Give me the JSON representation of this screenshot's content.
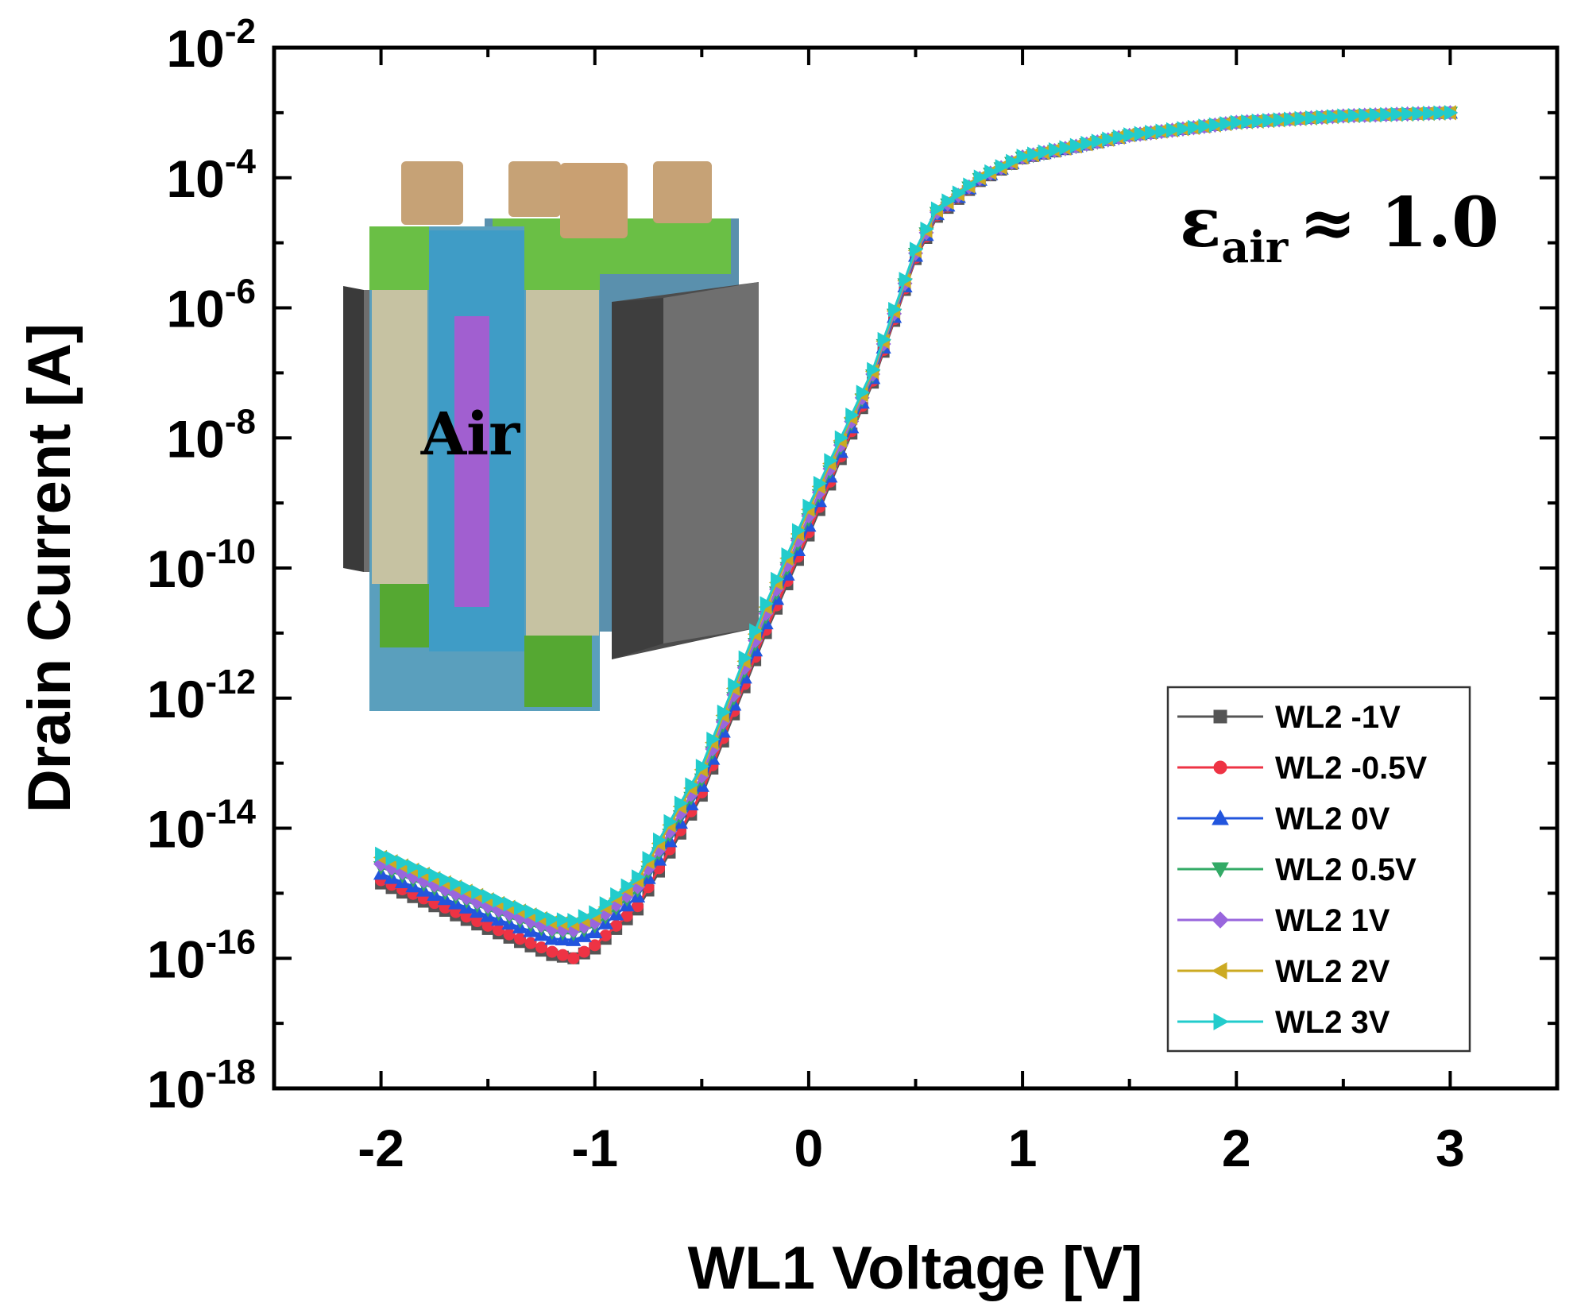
{
  "chart_data": {
    "type": "line",
    "xlabel": "WL1 Voltage [V]",
    "ylabel": "Drain Current [A]",
    "xlim": [
      -2.5,
      3.5
    ],
    "ylim": [
      1e-18,
      0.01
    ],
    "y_scale": "log",
    "x_ticks": [
      "-2",
      "-1",
      "0",
      "1",
      "2",
      "3"
    ],
    "y_ticks": [
      {
        "base": "10",
        "exp": "-2"
      },
      {
        "base": "10",
        "exp": "-4"
      },
      {
        "base": "10",
        "exp": "-6"
      },
      {
        "base": "10",
        "exp": "-8"
      },
      {
        "base": "10",
        "exp": "-10"
      },
      {
        "base": "10",
        "exp": "-12"
      },
      {
        "base": "10",
        "exp": "-14"
      },
      {
        "base": "10",
        "exp": "-16"
      },
      {
        "base": "10",
        "exp": "-18"
      }
    ],
    "grid": false,
    "legend_position": "bottom-right",
    "annotation": {
      "main": "ε",
      "sub": "air",
      "rest": "≈ 1.0"
    },
    "inset": {
      "label": "Air"
    },
    "series": [
      {
        "name": "WL2 -1V",
        "color": "#555555",
        "marker": "square",
        "x": [
          -2.0,
          -1.5,
          -1.2,
          -1.1,
          -1.0,
          -0.8,
          -0.5,
          -0.2,
          0.0,
          0.3,
          0.5,
          0.6,
          0.8,
          1.0,
          1.5,
          2.0,
          2.5,
          3.0
        ],
        "log_y": [
          -14.85,
          -15.55,
          -15.95,
          -16.0,
          -15.85,
          -15.25,
          -13.5,
          -11.0,
          -9.5,
          -7.15,
          -5.25,
          -4.6,
          -4.05,
          -3.7,
          -3.35,
          -3.15,
          -3.05,
          -3.0
        ]
      },
      {
        "name": "WL2 -0.5V",
        "color": "#ee3344",
        "marker": "circle",
        "x": [
          -2.0,
          -1.5,
          -1.2,
          -1.1,
          -1.0,
          -0.8,
          -0.5,
          -0.2,
          0.0,
          0.3,
          0.5,
          0.6,
          0.8,
          1.0,
          1.5,
          2.0,
          2.5,
          3.0
        ],
        "log_y": [
          -14.8,
          -15.5,
          -15.9,
          -16.0,
          -15.8,
          -15.2,
          -13.45,
          -10.95,
          -9.45,
          -7.12,
          -5.23,
          -4.58,
          -4.04,
          -3.7,
          -3.35,
          -3.15,
          -3.05,
          -3.0
        ]
      },
      {
        "name": "WL2 0V",
        "color": "#2255dd",
        "marker": "triangle-up",
        "x": [
          -2.0,
          -1.5,
          -1.2,
          -1.1,
          -1.0,
          -0.8,
          -0.5,
          -0.2,
          0.0,
          0.3,
          0.5,
          0.6,
          0.8,
          1.0,
          1.5,
          2.0,
          2.5,
          3.0
        ],
        "log_y": [
          -14.7,
          -15.35,
          -15.7,
          -15.72,
          -15.6,
          -15.05,
          -13.35,
          -10.85,
          -9.35,
          -7.08,
          -5.2,
          -4.56,
          -4.03,
          -3.69,
          -3.35,
          -3.15,
          -3.05,
          -3.0
        ]
      },
      {
        "name": "WL2 0.5V",
        "color": "#33aa66",
        "marker": "triangle-down",
        "x": [
          -2.0,
          -1.5,
          -1.2,
          -1.1,
          -1.0,
          -0.8,
          -0.5,
          -0.2,
          0.0,
          0.3,
          0.5,
          0.6,
          0.8,
          1.0,
          1.5,
          2.0,
          2.5,
          3.0
        ],
        "log_y": [
          -14.6,
          -15.25,
          -15.6,
          -15.62,
          -15.5,
          -14.95,
          -13.25,
          -10.75,
          -9.25,
          -7.04,
          -5.17,
          -4.54,
          -4.02,
          -3.69,
          -3.35,
          -3.15,
          -3.05,
          -3.0
        ]
      },
      {
        "name": "WL2 1V",
        "color": "#9966dd",
        "marker": "diamond",
        "x": [
          -2.0,
          -1.5,
          -1.2,
          -1.1,
          -1.0,
          -0.8,
          -0.5,
          -0.2,
          0.0,
          0.3,
          0.5,
          0.6,
          0.8,
          1.0,
          1.5,
          2.0,
          2.5,
          3.0
        ],
        "log_y": [
          -14.55,
          -15.2,
          -15.55,
          -15.57,
          -15.45,
          -14.9,
          -13.2,
          -10.7,
          -9.2,
          -7.02,
          -5.16,
          -4.53,
          -4.01,
          -3.68,
          -3.35,
          -3.15,
          -3.05,
          -3.0
        ]
      },
      {
        "name": "WL2 2V",
        "color": "#ccaa22",
        "marker": "triangle-left",
        "x": [
          -2.0,
          -1.5,
          -1.2,
          -1.1,
          -1.0,
          -0.8,
          -0.5,
          -0.2,
          0.0,
          0.3,
          0.5,
          0.6,
          0.8,
          1.0,
          1.5,
          2.0,
          2.5,
          3.0
        ],
        "log_y": [
          -14.45,
          -15.1,
          -15.45,
          -15.47,
          -15.35,
          -14.8,
          -13.1,
          -10.6,
          -9.1,
          -6.98,
          -5.12,
          -4.5,
          -4.0,
          -3.68,
          -3.34,
          -3.15,
          -3.05,
          -3.0
        ]
      },
      {
        "name": "WL2 3V",
        "color": "#22cccc",
        "marker": "triangle-right",
        "x": [
          -2.0,
          -1.5,
          -1.2,
          -1.1,
          -1.0,
          -0.8,
          -0.5,
          -0.2,
          0.0,
          0.3,
          0.5,
          0.6,
          0.8,
          1.0,
          1.5,
          2.0,
          2.5,
          3.0
        ],
        "log_y": [
          -14.4,
          -15.05,
          -15.4,
          -15.42,
          -15.3,
          -14.75,
          -13.05,
          -10.55,
          -9.05,
          -6.95,
          -5.1,
          -4.48,
          -3.99,
          -3.67,
          -3.34,
          -3.15,
          -3.05,
          -3.0
        ]
      }
    ]
  }
}
